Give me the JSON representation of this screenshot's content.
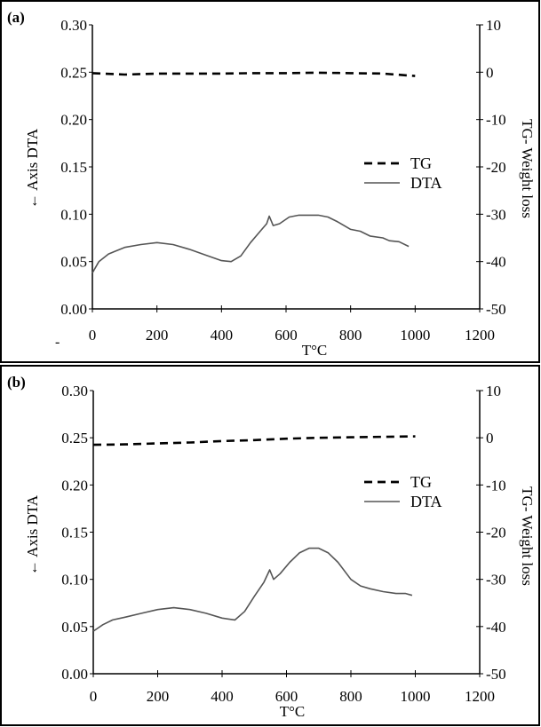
{
  "chart_data": [
    {
      "type": "line",
      "panel_label": "(a)",
      "xlabel": "T°C",
      "ylabel_left": "← Axis DTA",
      "ylabel_right": "TG- Weight loss",
      "xlim": [
        0,
        1200
      ],
      "ylim_left": [
        0.0,
        0.3
      ],
      "ylim_right": [
        -50,
        10
      ],
      "x_ticks": [
        "0",
        "200",
        "400",
        "600",
        "800",
        "1000",
        "1200"
      ],
      "y_left_ticks": [
        "0.00",
        "0.05",
        "0.10",
        "0.15",
        "0.20",
        "0.25",
        "0.30"
      ],
      "y_right_ticks": [
        "-50",
        "-40",
        "-30",
        "-20",
        "-10",
        "0",
        "10"
      ],
      "grid": false,
      "legend_position": "right-middle",
      "stray_mark": "-",
      "series": [
        {
          "name": "TG",
          "axis": "right",
          "style": "dashed",
          "x": [
            0,
            100,
            200,
            300,
            400,
            500,
            600,
            700,
            800,
            900,
            1000
          ],
          "y": [
            -0.2,
            -0.5,
            -0.3,
            -0.3,
            -0.3,
            -0.2,
            -0.2,
            -0.1,
            -0.2,
            -0.3,
            -0.8
          ]
        },
        {
          "name": "DTA",
          "axis": "left",
          "style": "solid",
          "x": [
            0,
            20,
            50,
            100,
            150,
            200,
            250,
            300,
            350,
            400,
            430,
            460,
            490,
            520,
            540,
            548,
            560,
            580,
            610,
            640,
            670,
            700,
            730,
            760,
            800,
            830,
            860,
            900,
            920,
            950,
            980
          ],
          "y": [
            0.038,
            0.05,
            0.058,
            0.065,
            0.068,
            0.07,
            0.068,
            0.063,
            0.057,
            0.051,
            0.05,
            0.056,
            0.07,
            0.082,
            0.09,
            0.098,
            0.088,
            0.09,
            0.097,
            0.099,
            0.099,
            0.099,
            0.097,
            0.092,
            0.084,
            0.082,
            0.077,
            0.075,
            0.072,
            0.071,
            0.066
          ]
        }
      ]
    },
    {
      "type": "line",
      "panel_label": "(b)",
      "xlabel": "T°C",
      "ylabel_left": "← Axis DTA",
      "ylabel_right": "TG- Weight loss",
      "xlim": [
        0,
        1200
      ],
      "ylim_left": [
        0.0,
        0.3
      ],
      "ylim_right": [
        -50,
        10
      ],
      "x_ticks": [
        "0",
        "200",
        "400",
        "600",
        "800",
        "1000",
        "1200"
      ],
      "y_left_ticks": [
        "0.00",
        "0.05",
        "0.10",
        "0.15",
        "0.20",
        "0.25",
        "0.30"
      ],
      "y_right_ticks": [
        "-50",
        "-40",
        "-30",
        "-20",
        "-10",
        "0",
        "10"
      ],
      "grid": false,
      "legend_position": "right-middle",
      "series": [
        {
          "name": "TG",
          "axis": "right",
          "style": "dashed",
          "x": [
            0,
            100,
            200,
            300,
            400,
            500,
            600,
            700,
            800,
            900,
            1000
          ],
          "y": [
            -1.5,
            -1.4,
            -1.2,
            -1.0,
            -0.7,
            -0.5,
            -0.2,
            0.0,
            0.1,
            0.2,
            0.3
          ]
        },
        {
          "name": "DTA",
          "axis": "left",
          "style": "solid",
          "x": [
            0,
            30,
            60,
            100,
            150,
            200,
            250,
            300,
            350,
            400,
            440,
            470,
            500,
            530,
            548,
            560,
            580,
            610,
            640,
            670,
            700,
            730,
            760,
            800,
            830,
            860,
            900,
            940,
            970,
            990
          ],
          "y": [
            0.045,
            0.052,
            0.057,
            0.06,
            0.064,
            0.068,
            0.07,
            0.068,
            0.064,
            0.059,
            0.057,
            0.066,
            0.082,
            0.097,
            0.11,
            0.1,
            0.106,
            0.118,
            0.128,
            0.133,
            0.133,
            0.128,
            0.118,
            0.1,
            0.093,
            0.09,
            0.087,
            0.085,
            0.085,
            0.083
          ]
        }
      ]
    }
  ]
}
